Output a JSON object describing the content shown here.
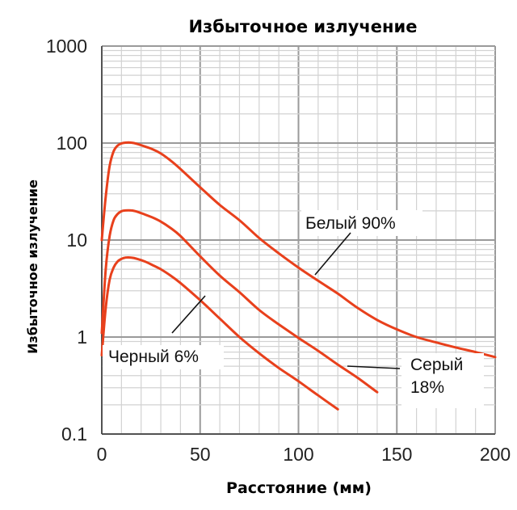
{
  "chart_data": {
    "type": "line",
    "title": "Избыточное излучение",
    "xlabel": "Расстояние (мм)",
    "ylabel": "Избыточное излучение",
    "xlim": [
      0,
      200
    ],
    "ylim": [
      0.1,
      1000
    ],
    "yscale": "log",
    "grid": true,
    "x_ticks": [
      "0",
      "50",
      "100",
      "150",
      "200"
    ],
    "y_ticks": [
      "0.1",
      "1",
      "10",
      "100",
      "1000"
    ],
    "series": [
      {
        "name": "Белый 90%",
        "label_lines": [
          "Белый 90%"
        ],
        "color": "#e8401c",
        "x": [
          0,
          2,
          4,
          6,
          8,
          10,
          12,
          15,
          18,
          22,
          26,
          30,
          35,
          40,
          50,
          60,
          70,
          80,
          90,
          100,
          110,
          120,
          130,
          140,
          150,
          160,
          170,
          180,
          190,
          200
        ],
        "y": [
          10,
          28,
          58,
          82,
          94,
          99,
          101,
          101,
          98,
          92,
          86,
          78,
          66,
          54,
          35,
          23,
          16,
          10.5,
          7.3,
          5.2,
          3.8,
          2.8,
          2.0,
          1.5,
          1.2,
          1.0,
          0.88,
          0.78,
          0.7,
          0.62
        ]
      },
      {
        "name": "Серый 18%",
        "label_lines": [
          "Серый",
          "18%"
        ],
        "color": "#e8401c",
        "x": [
          0,
          2,
          4,
          6,
          8,
          10,
          12,
          15,
          18,
          22,
          26,
          30,
          35,
          40,
          50,
          60,
          70,
          80,
          90,
          100,
          110,
          120,
          130,
          140
        ],
        "y": [
          1.1,
          5.0,
          11,
          16,
          18.5,
          19.8,
          20.2,
          20.2,
          19.6,
          18.3,
          17,
          15.5,
          13.3,
          11,
          6.8,
          4.3,
          2.9,
          1.9,
          1.35,
          0.98,
          0.72,
          0.52,
          0.38,
          0.27
        ]
      },
      {
        "name": "Черный 6%",
        "label_lines": [
          "Черный 6%"
        ],
        "color": "#e8401c",
        "x": [
          0,
          2,
          4,
          6,
          8,
          10,
          12,
          15,
          18,
          22,
          26,
          30,
          35,
          40,
          50,
          60,
          70,
          80,
          90,
          100,
          110,
          120
        ],
        "y": [
          0.65,
          2.0,
          3.9,
          5.2,
          6.0,
          6.4,
          6.6,
          6.6,
          6.4,
          6.0,
          5.5,
          5.0,
          4.3,
          3.6,
          2.4,
          1.55,
          1.0,
          0.68,
          0.48,
          0.35,
          0.25,
          0.18
        ]
      }
    ]
  }
}
